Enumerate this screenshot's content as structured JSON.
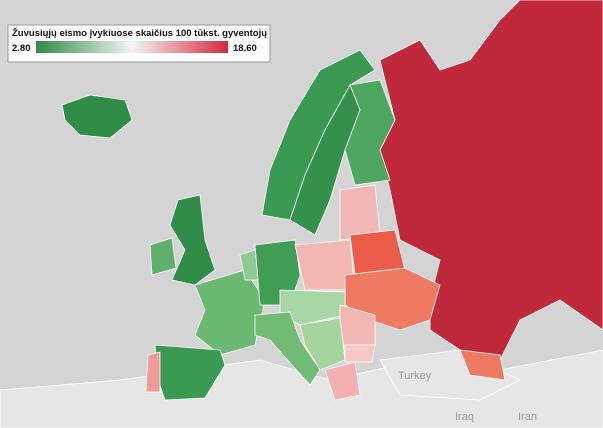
{
  "legend": {
    "title": "Žuvusiųjų eismo įvykiuose skaičius 100 tūkst. gyventojų",
    "min": {
      "value": 2.8,
      "label": "2.80"
    },
    "max": {
      "value": 18.6,
      "label": "18.60"
    },
    "colors": [
      "#2e8b45",
      "#f4f4f4",
      "#d42a3c"
    ]
  },
  "places": [
    {
      "label": "Turkey"
    },
    {
      "label": "Iraq"
    },
    {
      "label": "Iran"
    }
  ]
}
